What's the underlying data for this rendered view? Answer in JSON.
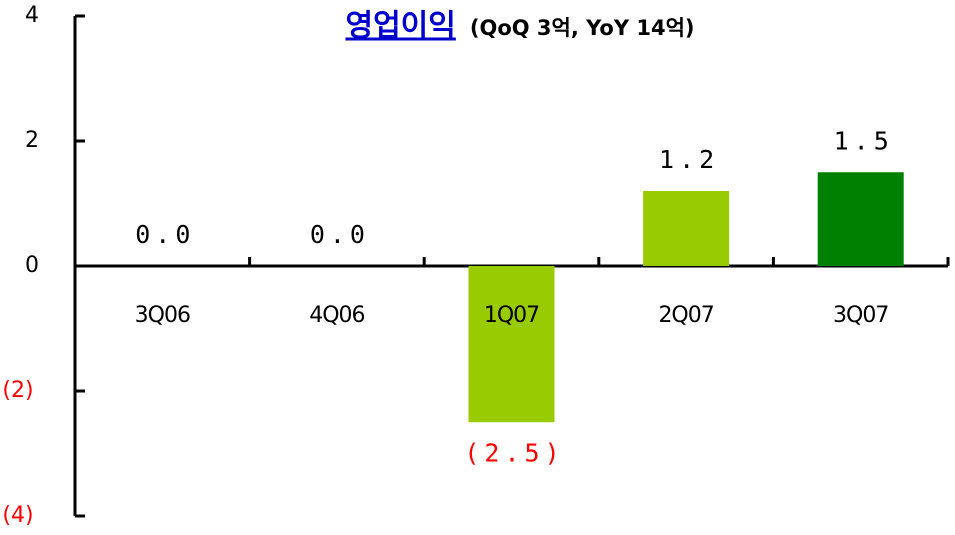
{
  "chart_data": {
    "type": "bar",
    "title": "영업이익",
    "subtitle": "(QoQ 3억, YoY 14억)",
    "categories": [
      "3Q06",
      "4Q06",
      "1Q07",
      "2Q07",
      "3Q07"
    ],
    "values": [
      0,
      0,
      -2.5,
      1.2,
      1.5
    ],
    "value_labels": [
      "0.0",
      "0.0",
      "(2.5)",
      "1.2",
      "1.5"
    ],
    "colors": [
      "#99cc00",
      "#99cc00",
      "#99cc00",
      "#99cc00",
      "#008000"
    ],
    "negative_label_color": "#ff0000",
    "title_color": "#0000cc",
    "ylim": [
      -4,
      4
    ],
    "yticks": [
      {
        "value": -4,
        "label": "(4)"
      },
      {
        "value": -2,
        "label": "(2)"
      },
      0,
      2,
      4
    ],
    "grid": false
  }
}
